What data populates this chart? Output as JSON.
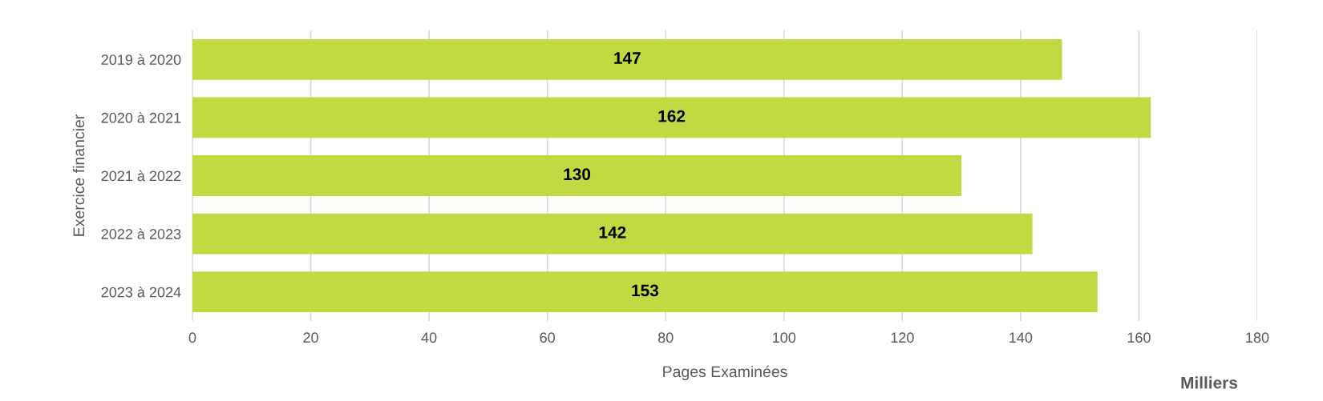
{
  "chart_data": {
    "type": "bar",
    "orientation": "horizontal",
    "ylabel": "Exercice financier",
    "xlabel": "Pages Examinées",
    "categories": [
      "2019 à 2020",
      "2020 à 2021",
      "2021 à 2022",
      "2022 à 2023",
      "2023 à 2024"
    ],
    "values": [
      147,
      162,
      130,
      142,
      153
    ],
    "color": "#c3d943",
    "xlim": [
      0,
      180
    ],
    "xticks": [
      0,
      20,
      40,
      60,
      80,
      100,
      120,
      140,
      160,
      180
    ],
    "grid": "x",
    "data_labels": true,
    "annotations": [
      "Milliers"
    ]
  }
}
